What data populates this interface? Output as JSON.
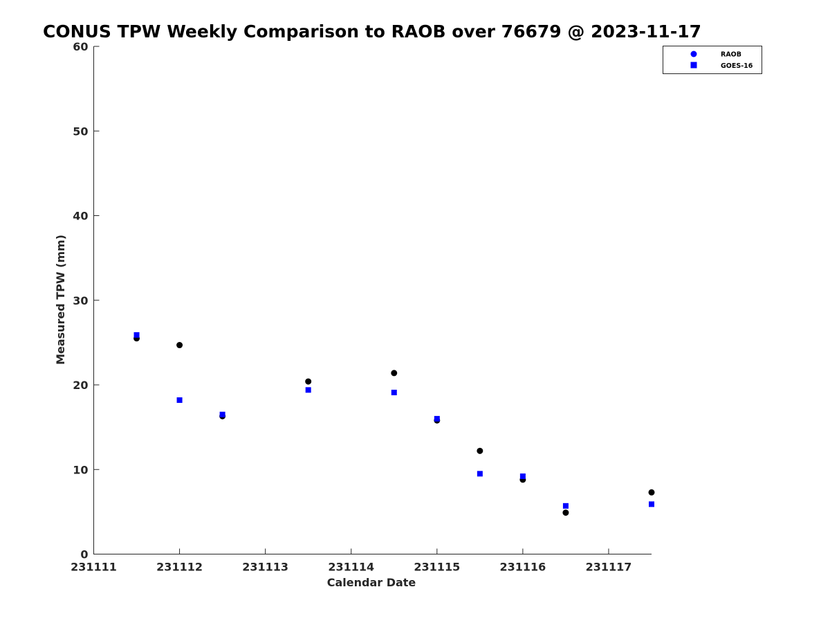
{
  "chart_data": {
    "type": "scatter",
    "title": "CONUS TPW Weekly Comparison to RAOB over 76679 @ 2023-11-17",
    "xlabel": "Calendar Date",
    "ylabel": "Measured TPW (mm)",
    "xlim": [
      231111,
      231117.5
    ],
    "ylim": [
      0,
      60
    ],
    "xticks": [
      231111,
      231112,
      231113,
      231114,
      231115,
      231116,
      231117
    ],
    "xtick_labels": [
      "231111",
      "231112",
      "231113",
      "231114",
      "231115",
      "231116",
      "231117"
    ],
    "yticks": [
      0,
      10,
      20,
      30,
      40,
      50,
      60
    ],
    "ytick_labels": [
      "0",
      "10",
      "20",
      "30",
      "40",
      "50",
      "60"
    ],
    "grid": false,
    "legend_position": "top-right",
    "series": [
      {
        "name": "RAOB",
        "marker": "circle",
        "legend_color": "#0000ff",
        "color": "#000000",
        "x": [
          231111.5,
          231112,
          231112.5,
          231113.5,
          231114.5,
          231115,
          231115.5,
          231116,
          231116.5,
          231117.5
        ],
        "y": [
          25.5,
          24.7,
          16.3,
          20.4,
          21.4,
          15.8,
          12.2,
          8.8,
          4.9,
          7.3
        ]
      },
      {
        "name": "GOES-16",
        "marker": "square",
        "color": "#0000ff",
        "x": [
          231111.5,
          231112,
          231112.5,
          231113.5,
          231114.5,
          231115,
          231115.5,
          231116,
          231116.5,
          231117.5
        ],
        "y": [
          25.9,
          18.2,
          16.5,
          19.4,
          19.1,
          16.0,
          9.5,
          9.2,
          5.7,
          5.9
        ]
      }
    ]
  }
}
